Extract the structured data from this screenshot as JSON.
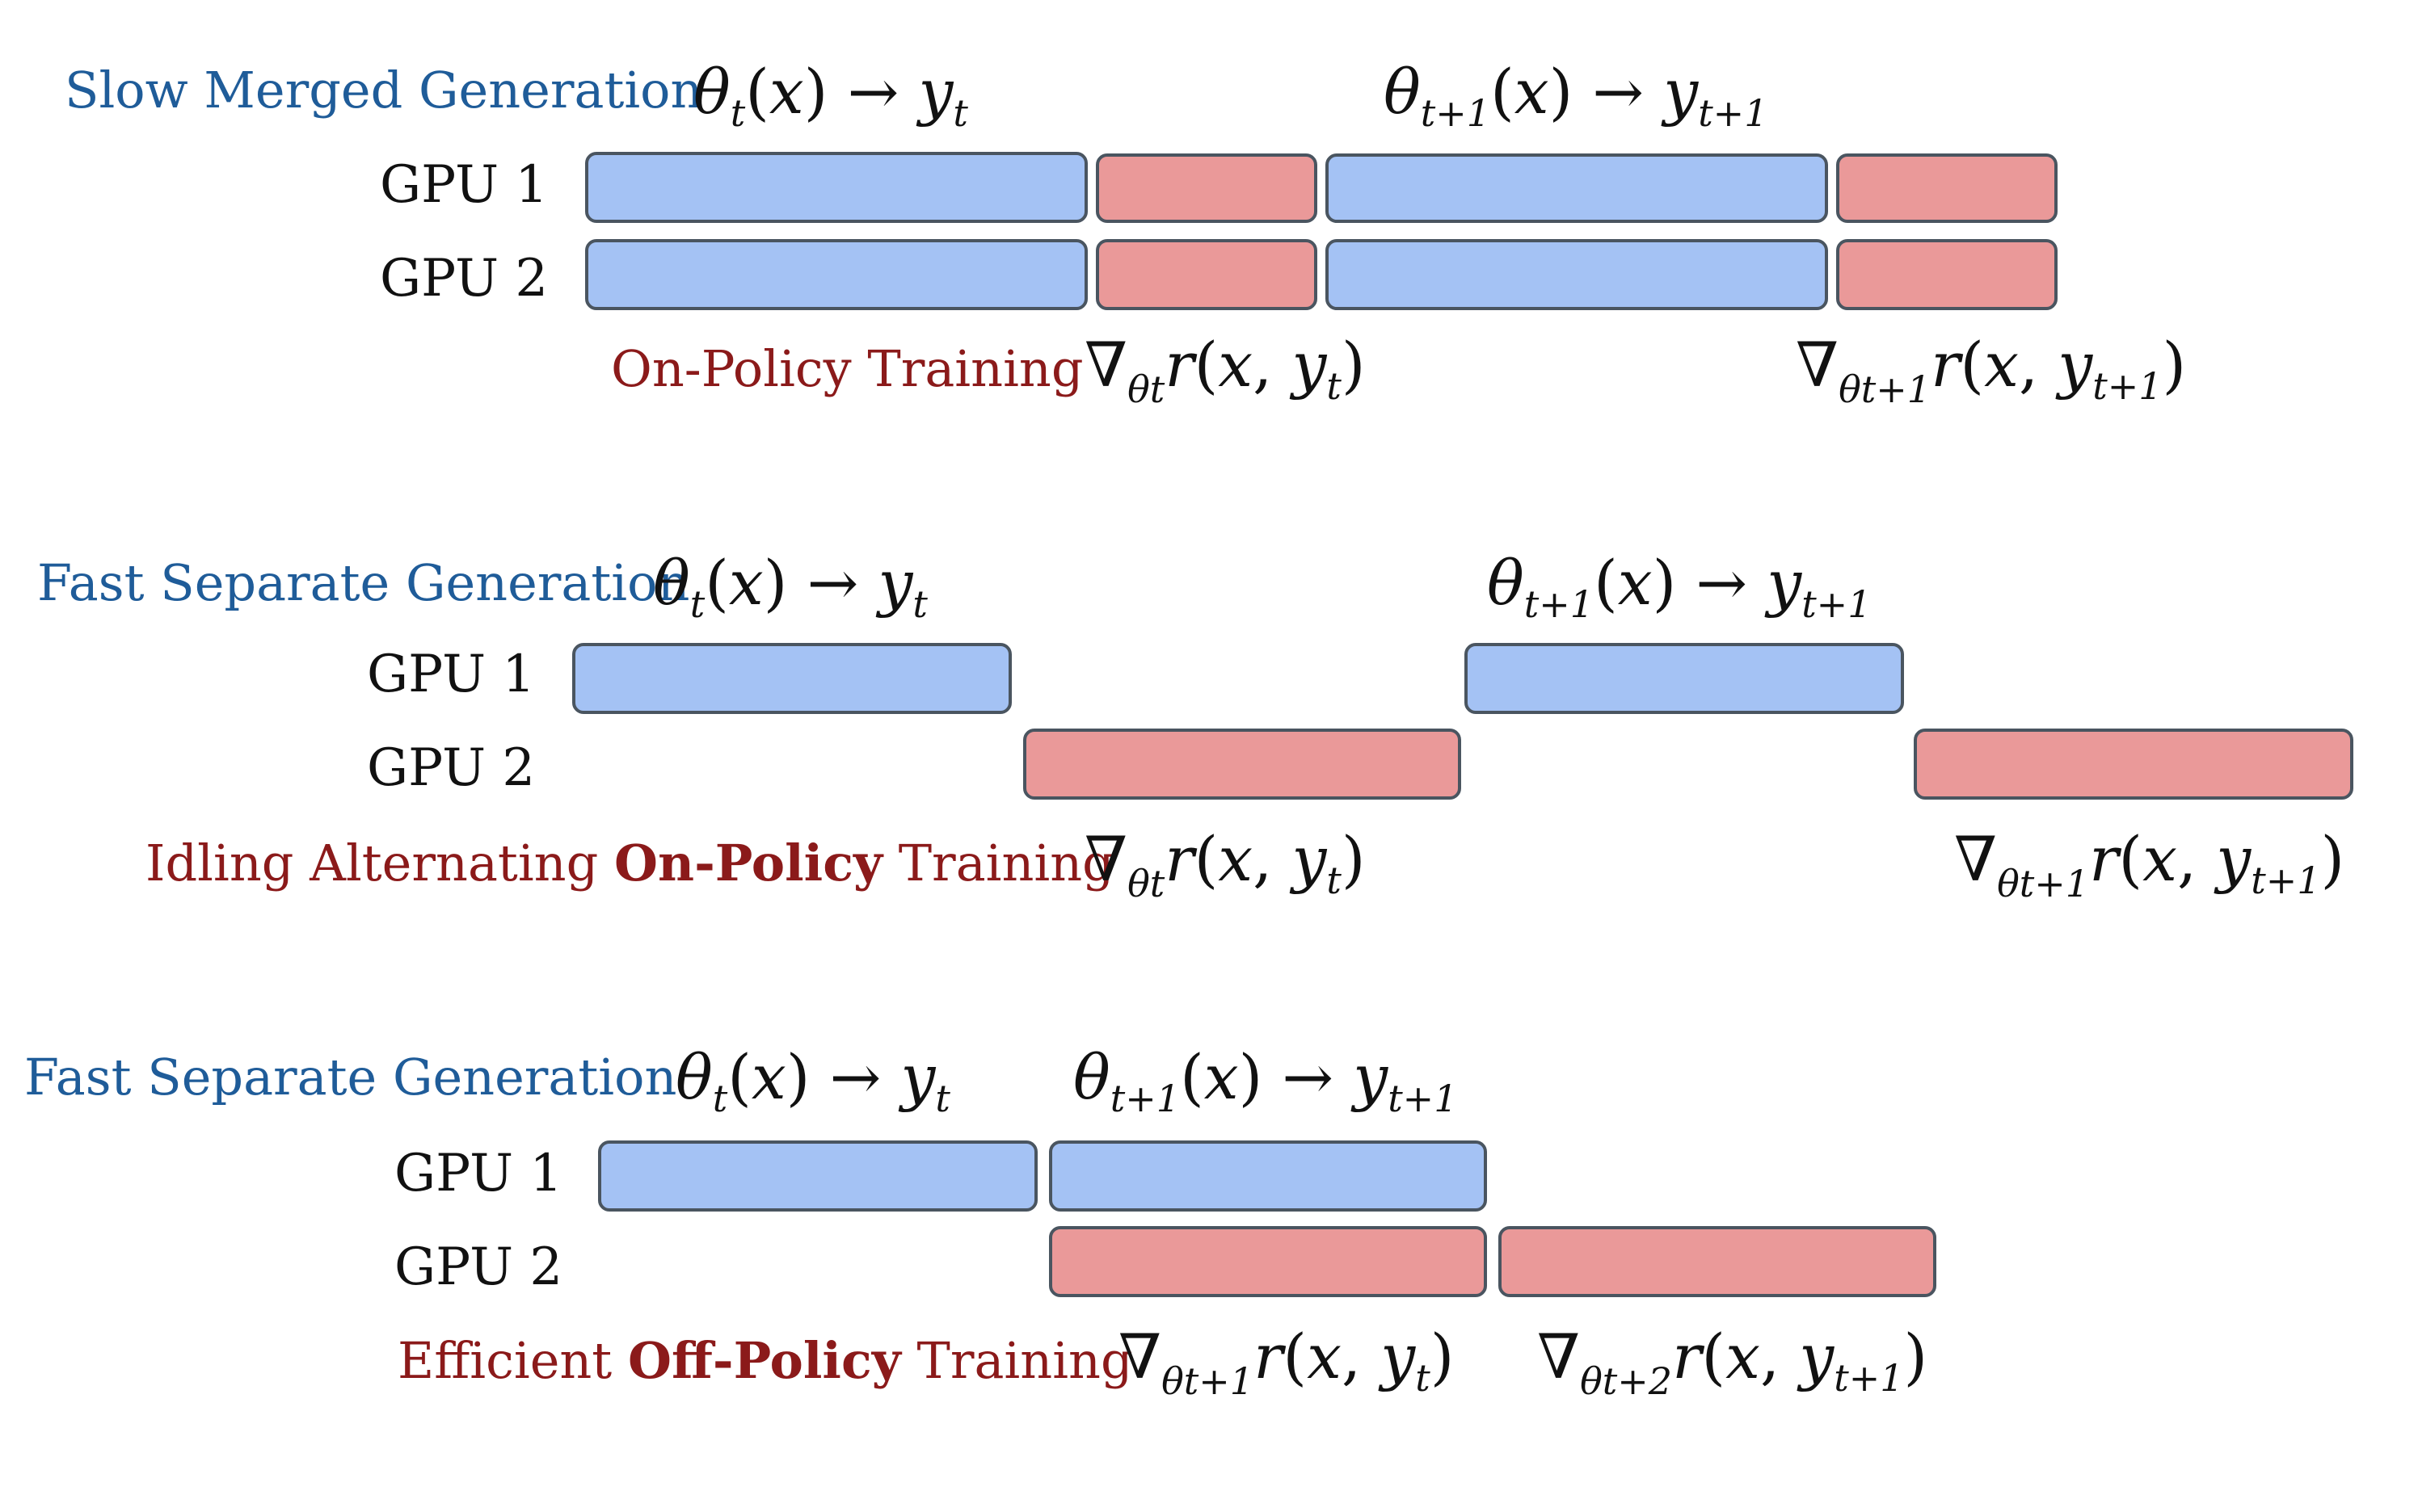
{
  "colors": {
    "generation_bar": "#a4c2f4",
    "training_bar": "#ea9999",
    "generation_text": "#1f5c99",
    "training_text": "#8b1a1a"
  },
  "gpu_labels": [
    "GPU 1",
    "GPU 2"
  ],
  "panels": [
    {
      "generation_title": "Slow Merged Generation",
      "training_title_parts": [
        {
          "text": "On-Policy Training",
          "bold": false
        }
      ],
      "generation_labels": [
        {
          "theta_sub": "t",
          "y_sub": "t"
        },
        {
          "theta_sub": "t+1",
          "y_sub": "t+1"
        }
      ],
      "training_labels": [
        {
          "theta_sub": "θt",
          "y_sub": "t"
        },
        {
          "theta_sub": "θt+1",
          "y_sub": "t+1"
        }
      ]
    },
    {
      "generation_title": "Fast Separate Generation",
      "training_title_parts": [
        {
          "text": "Idling Alternating ",
          "bold": false
        },
        {
          "text": "On-Policy",
          "bold": true
        },
        {
          "text": " Training",
          "bold": false
        }
      ],
      "generation_labels": [
        {
          "theta_sub": "t",
          "y_sub": "t"
        },
        {
          "theta_sub": "t+1",
          "y_sub": "t+1"
        }
      ],
      "training_labels": [
        {
          "theta_sub": "θt",
          "y_sub": "t"
        },
        {
          "theta_sub": "θt+1",
          "y_sub": "t+1"
        }
      ]
    },
    {
      "generation_title": "Fast Separate Generation",
      "training_title_parts": [
        {
          "text": "Efficient ",
          "bold": false
        },
        {
          "text": "Off-Policy",
          "bold": true
        },
        {
          "text": " Training",
          "bold": false
        }
      ],
      "generation_labels": [
        {
          "theta_sub": "t",
          "y_sub": "t"
        },
        {
          "theta_sub": "t+1",
          "y_sub": "t+1"
        }
      ],
      "training_labels": [
        {
          "theta_sub": "θt+1",
          "y_sub": "t"
        },
        {
          "theta_sub": "θt+2",
          "y_sub": "t+1"
        }
      ]
    }
  ]
}
